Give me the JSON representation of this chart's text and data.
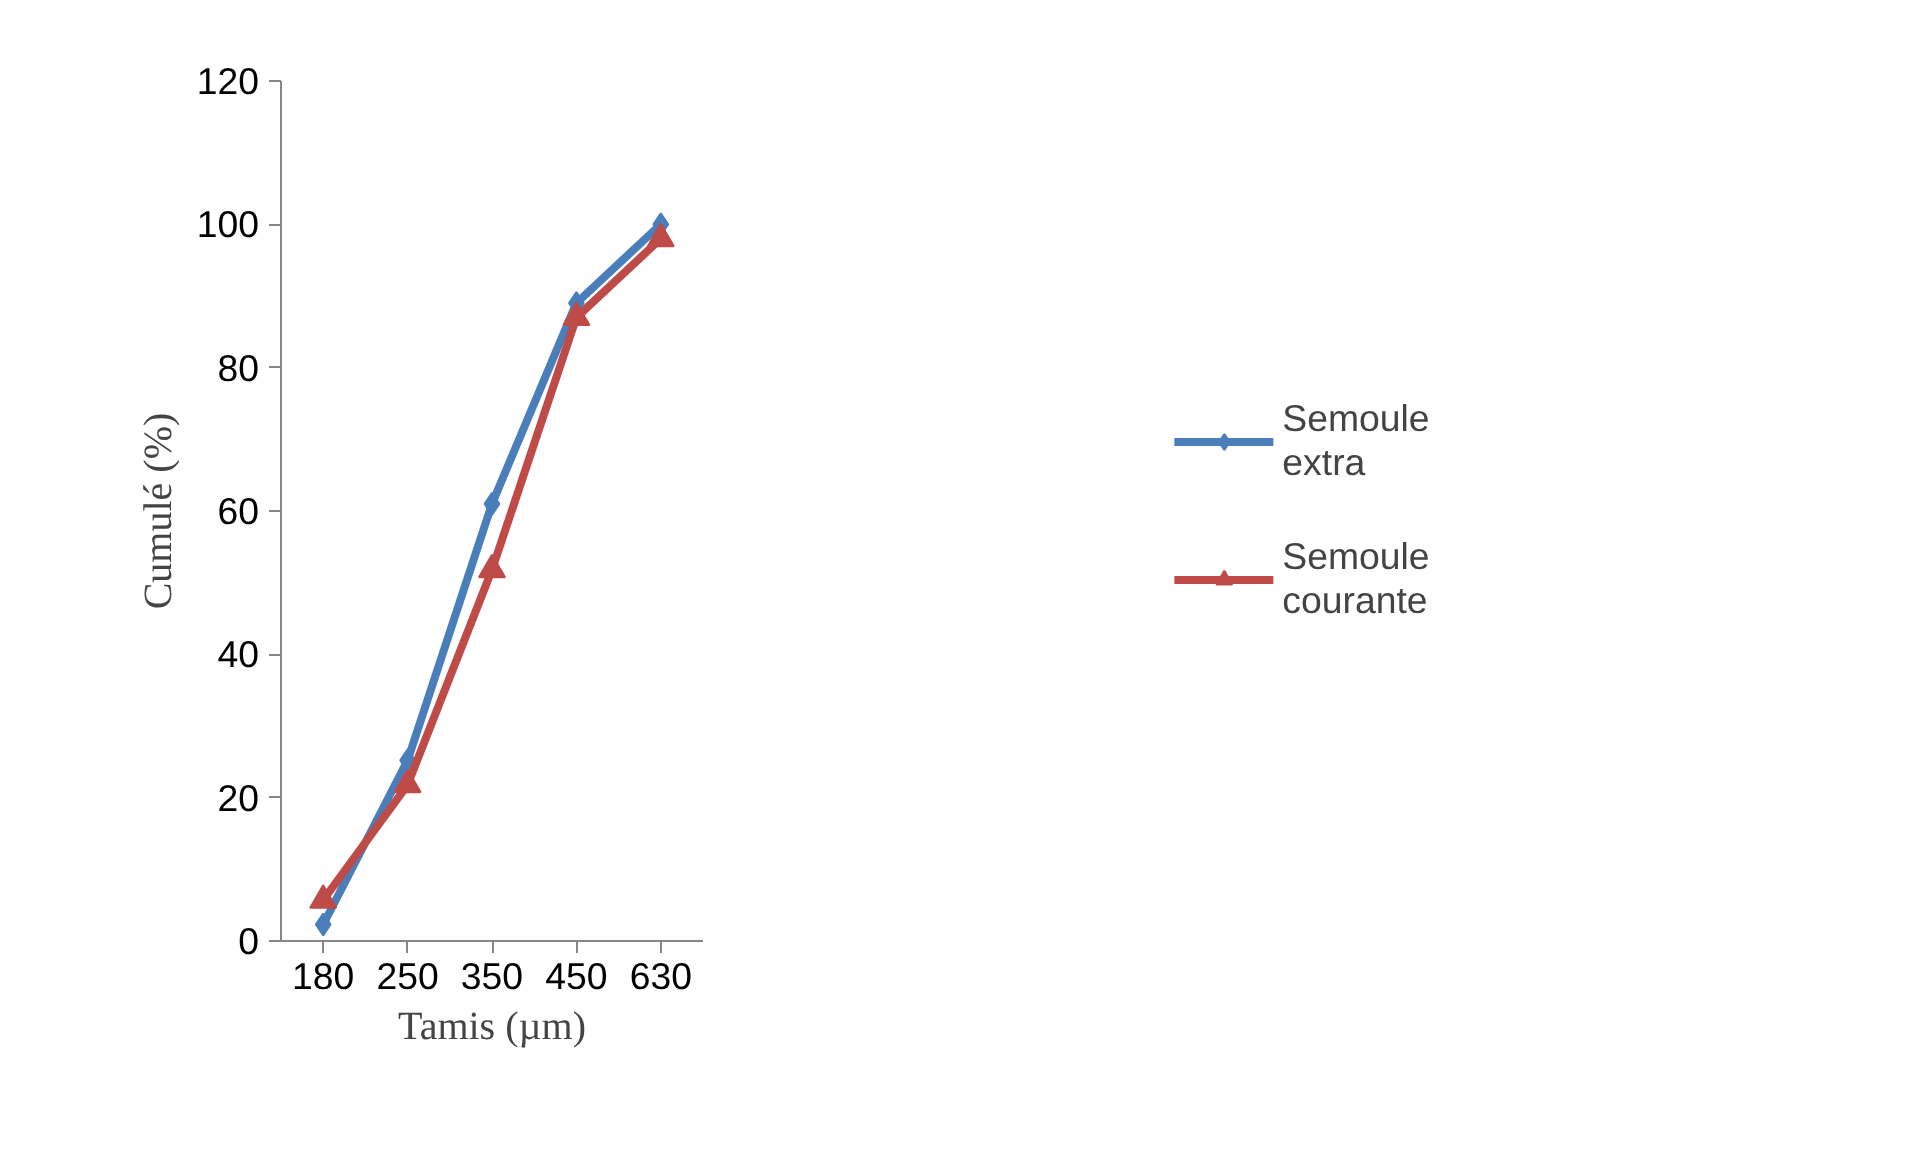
{
  "chart_data": {
    "type": "line",
    "xlabel": "Tamis (µm)",
    "ylabel": "Cumulé (%)",
    "categories": [
      "180",
      "250",
      "350",
      "450",
      "630"
    ],
    "ylim": [
      0,
      120
    ],
    "yticks": [
      0,
      20,
      40,
      60,
      80,
      100,
      120
    ],
    "grid": false,
    "legend": "right",
    "series": [
      {
        "name": "Semoule\nextra",
        "color": "#4a7ebb",
        "marker": "diamond",
        "values": [
          2.3,
          25.2,
          61,
          89,
          100
        ]
      },
      {
        "name": "Semoule\ncourante",
        "color": "#be4b48",
        "marker": "triangle",
        "values": [
          5.7,
          21.8,
          51.8,
          87,
          98
        ]
      }
    ]
  }
}
